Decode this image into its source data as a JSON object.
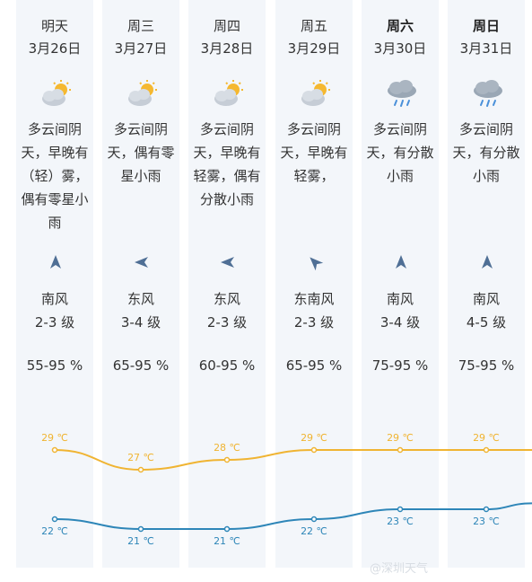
{
  "days": [
    {
      "day": "明天",
      "date": "3月26日",
      "bold": false,
      "icon": "cloudy-sun-icon",
      "desc": [
        "多云间阴",
        "天，早晚有",
        "（轻）雾，",
        "偶有零星小",
        "雨"
      ],
      "wind_dir": "north",
      "wind": "南风",
      "level": "2-3 级",
      "humidity": "55-95 %"
    },
    {
      "day": "周三",
      "date": "3月27日",
      "bold": false,
      "icon": "cloudy-sun-icon",
      "desc": [
        "多云间阴",
        "天，偶有零",
        "星小雨"
      ],
      "wind_dir": "west",
      "wind": "东风",
      "level": "3-4 级",
      "humidity": "65-95 %"
    },
    {
      "day": "周四",
      "date": "3月28日",
      "bold": false,
      "icon": "cloudy-sun-icon",
      "desc": [
        "多云间阴",
        "天，早晚有",
        "轻雾，偶有",
        "分散小雨"
      ],
      "wind_dir": "west",
      "wind": "东风",
      "level": "2-3 级",
      "humidity": "60-95 %"
    },
    {
      "day": "周五",
      "date": "3月29日",
      "bold": false,
      "icon": "cloudy-sun-icon",
      "desc": [
        "多云间阴",
        "天，早晚有",
        "轻雾，"
      ],
      "wind_dir": "northwest",
      "wind": "东南风",
      "level": "2-3 级",
      "humidity": "65-95 %"
    },
    {
      "day": "周六",
      "date": "3月30日",
      "bold": true,
      "icon": "rain-cloud-icon",
      "desc": [
        "多云间阴",
        "天，有分散",
        "小雨"
      ],
      "wind_dir": "north",
      "wind": "南风",
      "level": "3-4 级",
      "humidity": "75-95 %"
    },
    {
      "day": "周日",
      "date": "3月31日",
      "bold": true,
      "icon": "rain-cloud-icon",
      "desc": [
        "多云间阴",
        "天，有分散",
        "小雨"
      ],
      "wind_dir": "north",
      "wind": "南风",
      "level": "4-5 级",
      "humidity": "75-95 %"
    }
  ],
  "chart_data": {
    "type": "line",
    "categories": [
      "3月26日",
      "3月27日",
      "3月28日",
      "3月29日",
      "3月30日",
      "3月31日"
    ],
    "series": [
      {
        "values": [
          29,
          27,
          28,
          29,
          29,
          29
        ],
        "labels": [
          "29 ℃",
          "27 ℃",
          "28 ℃",
          "29 ℃",
          "29 ℃",
          "29 ℃"
        ],
        "color": "#f0b432"
      },
      {
        "values": [
          22,
          21,
          21,
          22,
          23,
          23
        ],
        "labels": [
          "22 ℃",
          "21 ℃",
          "21 ℃",
          "22 ℃",
          "23 ℃",
          "23 ℃"
        ],
        "color": "#2e86b8"
      }
    ]
  },
  "watermark": "@深圳天气"
}
